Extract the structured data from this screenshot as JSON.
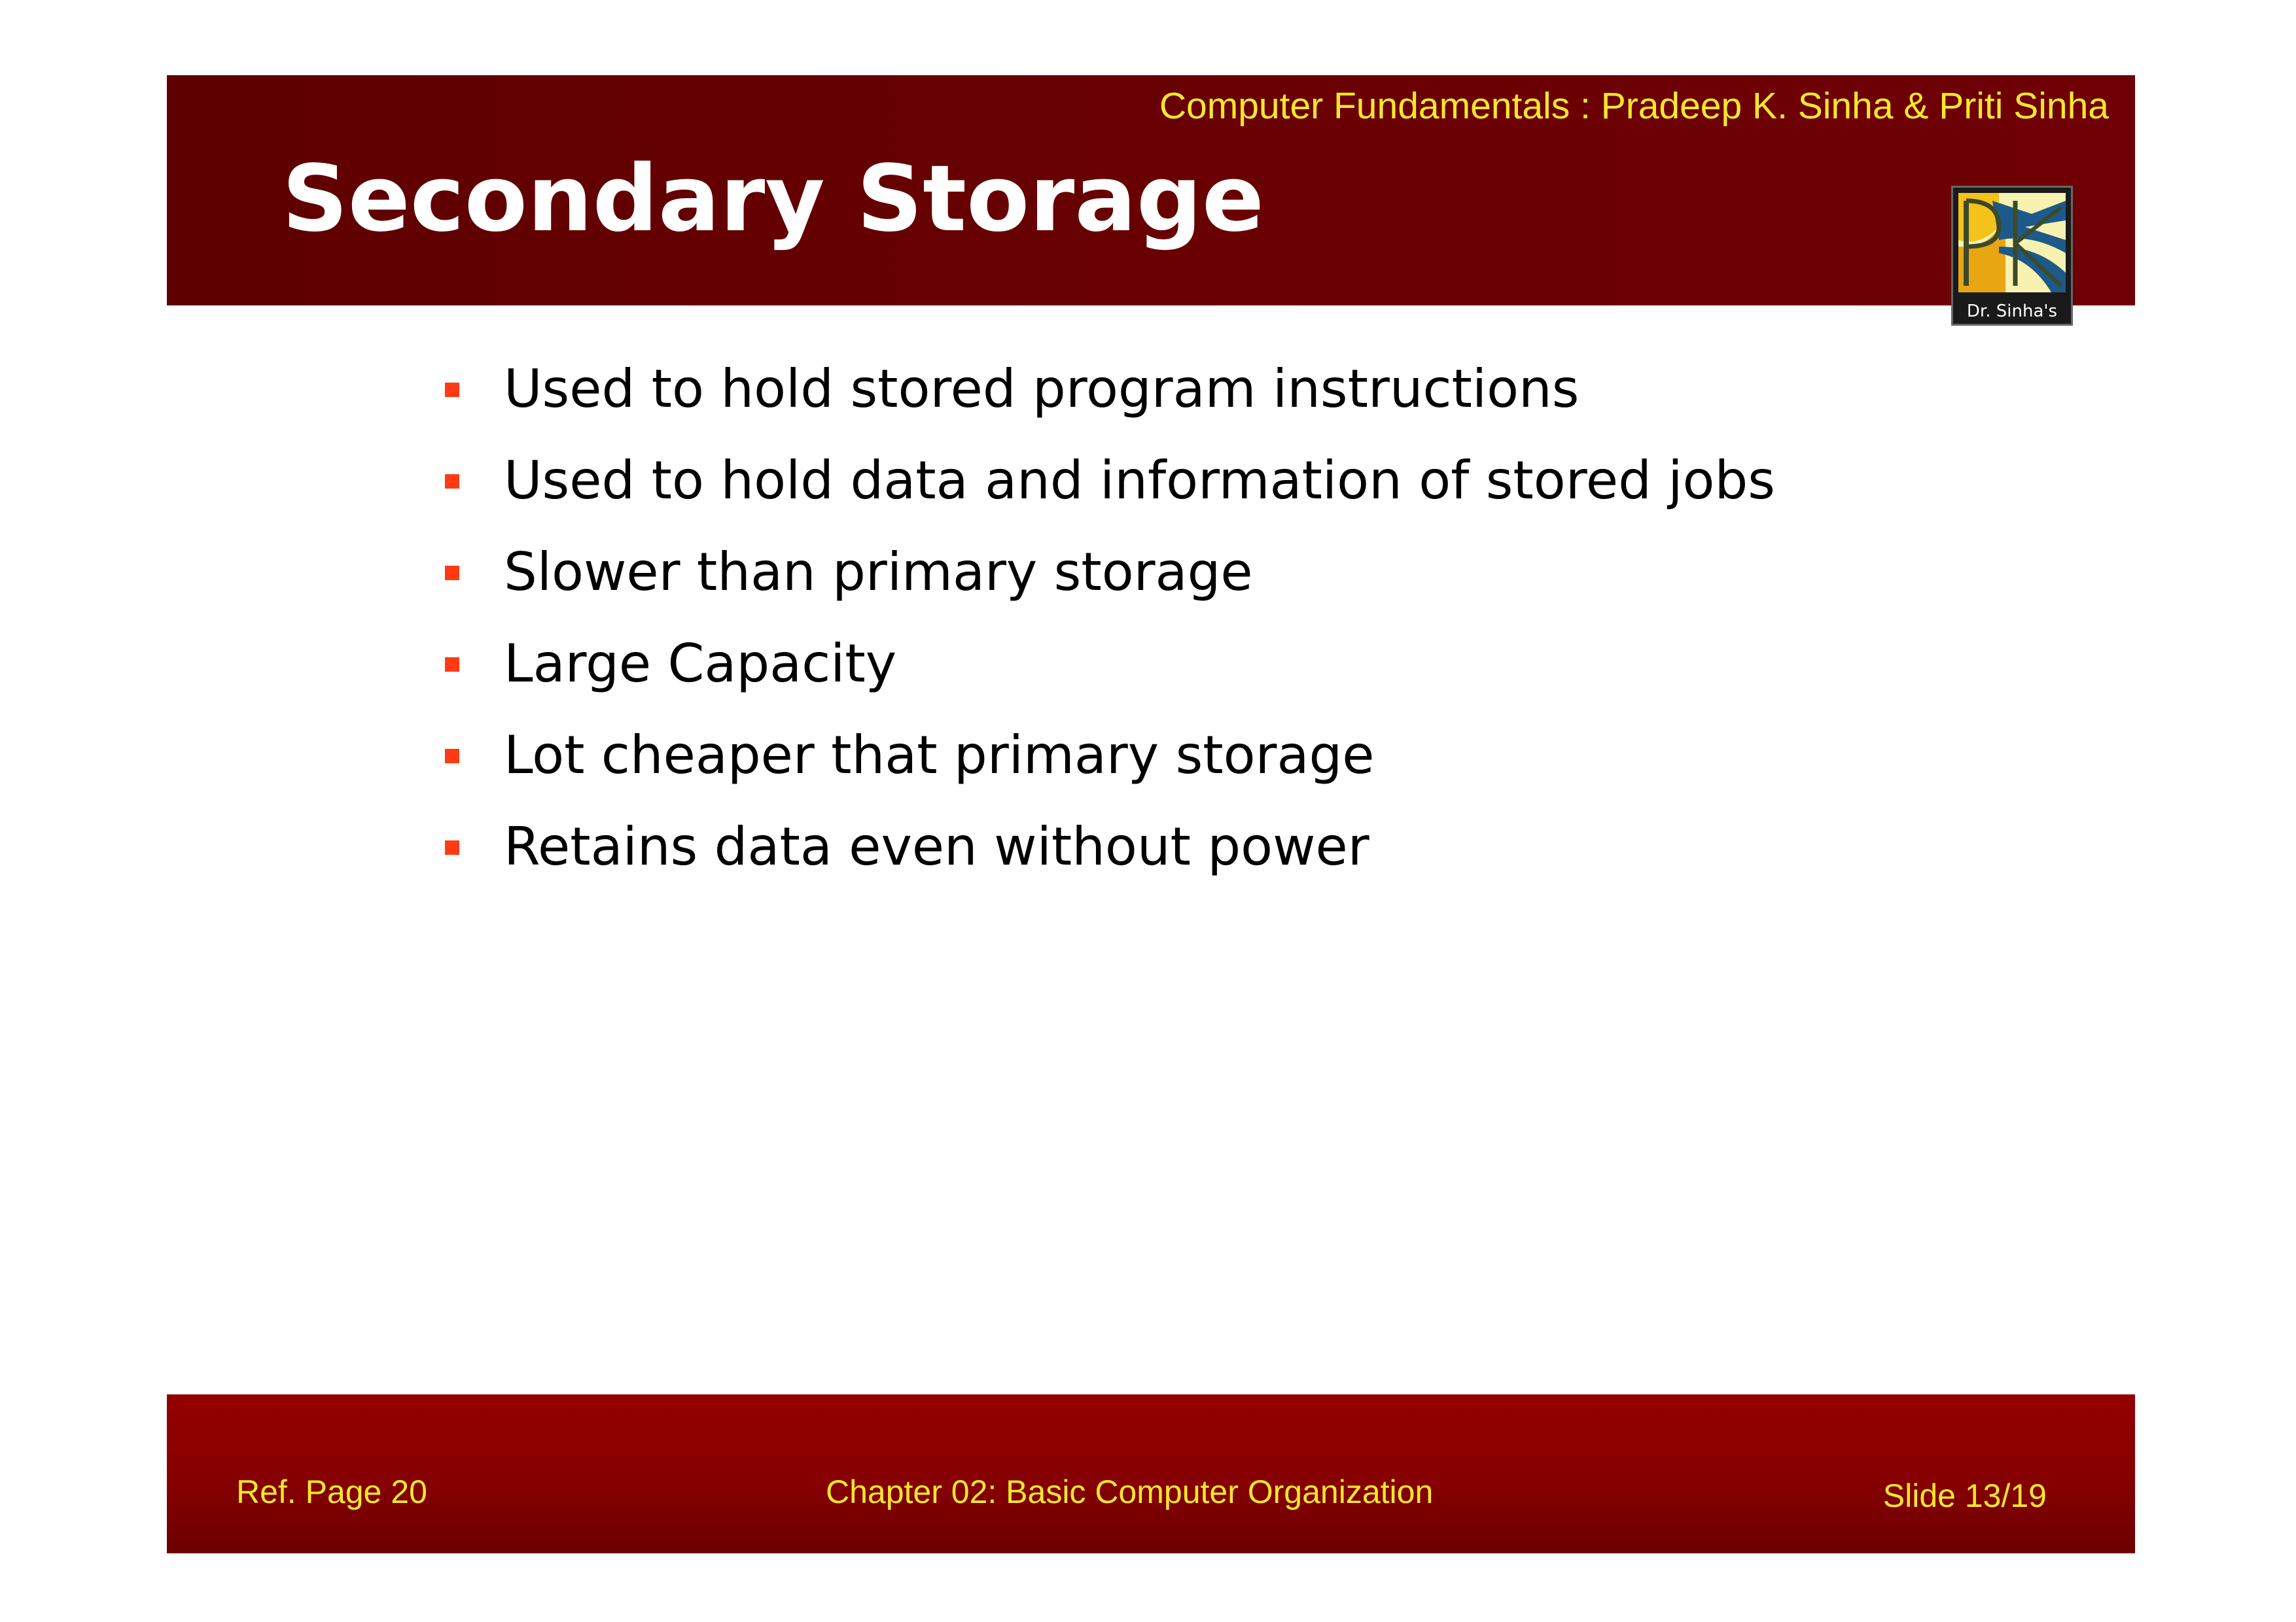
{
  "header": {
    "book_title": "Computer Fundamentals : Pradeep K. Sinha & Priti Sinha",
    "slide_title": "Secondary Storage",
    "logo_caption": "Dr. Sinha's"
  },
  "bullets": [
    "Used to hold stored program instructions",
    "Used to hold data and information of stored jobs",
    "Slower than primary storage",
    "Large Capacity",
    "Lot cheaper that primary storage",
    "Retains data even without power"
  ],
  "footer": {
    "ref_page": "Ref. Page  20",
    "chapter": "Chapter 02: Basic Computer Organization",
    "slide_number": "Slide 13/19"
  },
  "colors": {
    "header_band": "#650002",
    "footer_band": "#8a0000",
    "accent_text": "#ffe82a",
    "bullet_marker": "#ff3a14"
  }
}
